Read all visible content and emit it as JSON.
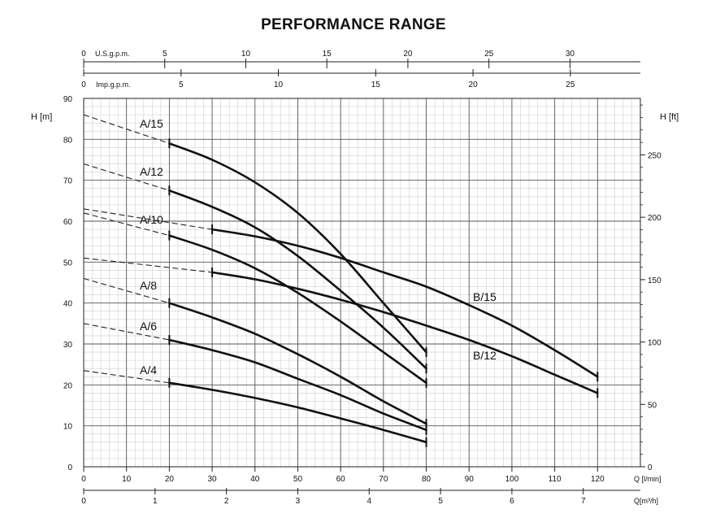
{
  "chart_data": {
    "type": "line",
    "title": "PERFORMANCE RANGE",
    "y_left": {
      "label": "H [m]",
      "range": [
        0,
        90
      ],
      "ticks": [
        "0",
        "10",
        "20",
        "30",
        "40",
        "50",
        "60",
        "70",
        "80",
        "90"
      ]
    },
    "y_right": {
      "label": "H [ft]",
      "ticks": [
        "0",
        "50",
        "100",
        "150",
        "200",
        "250"
      ]
    },
    "x_bottom": {
      "label": "Q [l/min]",
      "range": [
        0,
        130
      ],
      "ticks": [
        "0",
        "10",
        "20",
        "30",
        "40",
        "50",
        "60",
        "70",
        "80",
        "90",
        "100",
        "110",
        "120"
      ]
    },
    "x_m3h": {
      "label": "Q[m³/h]",
      "ticks": [
        "0",
        "1",
        "2",
        "3",
        "4",
        "5",
        "6",
        "7"
      ]
    },
    "x_usgpm": {
      "label": "U.S.g.p.m.",
      "ticks": [
        "0",
        "5",
        "10",
        "15",
        "20",
        "25",
        "30"
      ]
    },
    "x_impgpm": {
      "label": "Imp.g.p.m.",
      "ticks": [
        "0",
        "5",
        "10",
        "15",
        "20",
        "25"
      ]
    },
    "grid": true,
    "series": [
      {
        "name": "A/15",
        "points": [
          [
            20,
            79
          ],
          [
            30,
            75
          ],
          [
            40,
            69.5
          ],
          [
            50,
            62
          ],
          [
            60,
            52
          ],
          [
            70,
            40
          ],
          [
            80,
            28
          ]
        ],
        "start": [
          0,
          86
        ]
      },
      {
        "name": "A/12",
        "points": [
          [
            20,
            67.5
          ],
          [
            30,
            63.5
          ],
          [
            40,
            58.5
          ],
          [
            50,
            51.5
          ],
          [
            60,
            43
          ],
          [
            70,
            34
          ],
          [
            80,
            24
          ]
        ],
        "start": [
          0,
          74
        ]
      },
      {
        "name": "A/10",
        "points": [
          [
            20,
            56.5
          ],
          [
            30,
            53
          ],
          [
            40,
            48.5
          ],
          [
            50,
            42.5
          ],
          [
            60,
            35.5
          ],
          [
            70,
            28
          ],
          [
            80,
            20.5
          ]
        ],
        "start": [
          0,
          62
        ]
      },
      {
        "name": "A/8",
        "points": [
          [
            20,
            40
          ],
          [
            30,
            36.5
          ],
          [
            40,
            32.5
          ],
          [
            50,
            27.5
          ],
          [
            60,
            22
          ],
          [
            70,
            16
          ],
          [
            80,
            10.5
          ]
        ],
        "start": [
          0,
          46
        ]
      },
      {
        "name": "A/6",
        "points": [
          [
            20,
            31
          ],
          [
            30,
            28.5
          ],
          [
            40,
            25.5
          ],
          [
            50,
            21.5
          ],
          [
            60,
            17.5
          ],
          [
            70,
            13
          ],
          [
            80,
            9
          ]
        ],
        "start": [
          0,
          35
        ]
      },
      {
        "name": "A/4",
        "points": [
          [
            20,
            20.5
          ],
          [
            30,
            18.8
          ],
          [
            40,
            16.8
          ],
          [
            50,
            14.5
          ],
          [
            60,
            11.8
          ],
          [
            70,
            9
          ],
          [
            80,
            6
          ]
        ],
        "start": [
          0,
          23.5
        ]
      },
      {
        "name": "B/15",
        "points": [
          [
            30,
            58
          ],
          [
            40,
            56.3
          ],
          [
            50,
            54
          ],
          [
            60,
            51
          ],
          [
            70,
            47.5
          ],
          [
            80,
            44
          ],
          [
            90,
            39.5
          ],
          [
            100,
            34.5
          ],
          [
            110,
            28.5
          ],
          [
            120,
            22
          ]
        ],
        "start": [
          0,
          63
        ]
      },
      {
        "name": "B/12",
        "points": [
          [
            30,
            47.5
          ],
          [
            40,
            45.8
          ],
          [
            50,
            43.5
          ],
          [
            60,
            40.8
          ],
          [
            70,
            37.8
          ],
          [
            80,
            34.5
          ],
          [
            90,
            31
          ],
          [
            100,
            27
          ],
          [
            110,
            22.5
          ],
          [
            120,
            18
          ]
        ],
        "start": [
          0,
          51
        ]
      }
    ]
  }
}
